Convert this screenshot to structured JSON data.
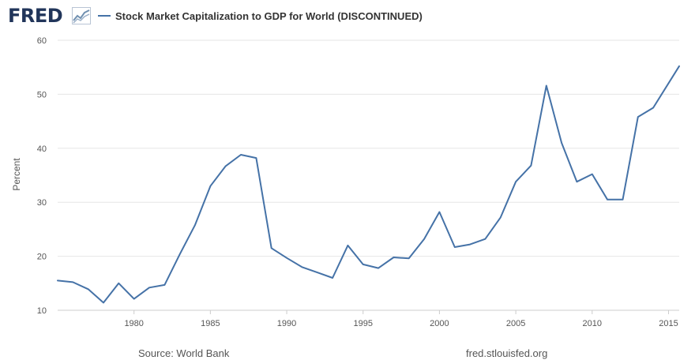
{
  "header": {
    "logo_text": "FRED",
    "logo_icon": "chart-trend-icon",
    "series_title": "Stock Market Capitalization to GDP for World (DISCONTINUED)"
  },
  "footer": {
    "source": "Source: World Bank",
    "site": "fred.stlouisfed.org"
  },
  "colors": {
    "line": "#4572a7",
    "grid": "#e6e6e6",
    "axis_text": "#555555"
  },
  "chart_data": {
    "type": "line",
    "ylabel": "Percent",
    "xlabel": "",
    "ylim": [
      10,
      60
    ],
    "xlim": [
      1975,
      2015.7
    ],
    "yticks": [
      10,
      20,
      30,
      40,
      50,
      60
    ],
    "xticks": [
      1980,
      1985,
      1990,
      1995,
      2000,
      2005,
      2010,
      2015
    ],
    "grid": true,
    "legend_position": "top-left",
    "series": [
      {
        "name": "Stock Market Capitalization to GDP for World (DISCONTINUED)",
        "x": [
          1975,
          1976,
          1977,
          1978,
          1979,
          1980,
          1981,
          1982,
          1983,
          1984,
          1985,
          1986,
          1987,
          1988,
          1989,
          1990,
          1991,
          1992,
          1993,
          1994,
          1995,
          1996,
          1997,
          1998,
          1999,
          2000,
          2001,
          2002,
          2003,
          2004,
          2005,
          2006,
          2007,
          2008,
          2009,
          2010,
          2011,
          2012,
          2013,
          2014,
          2015.7
        ],
        "values": [
          15.5,
          15.2,
          13.9,
          11.4,
          15.0,
          12.1,
          14.2,
          14.7,
          20.4,
          25.8,
          33.0,
          36.7,
          38.8,
          38.2,
          21.5,
          19.7,
          18.0,
          17.0,
          16.0,
          22.0,
          18.5,
          17.8,
          19.8,
          19.6,
          23.2,
          28.2,
          21.7,
          22.2,
          23.2,
          27.2,
          33.8,
          36.8,
          51.6,
          41.0,
          33.8,
          35.2,
          30.5,
          30.5,
          45.8,
          47.5,
          55.2
        ]
      }
    ]
  }
}
